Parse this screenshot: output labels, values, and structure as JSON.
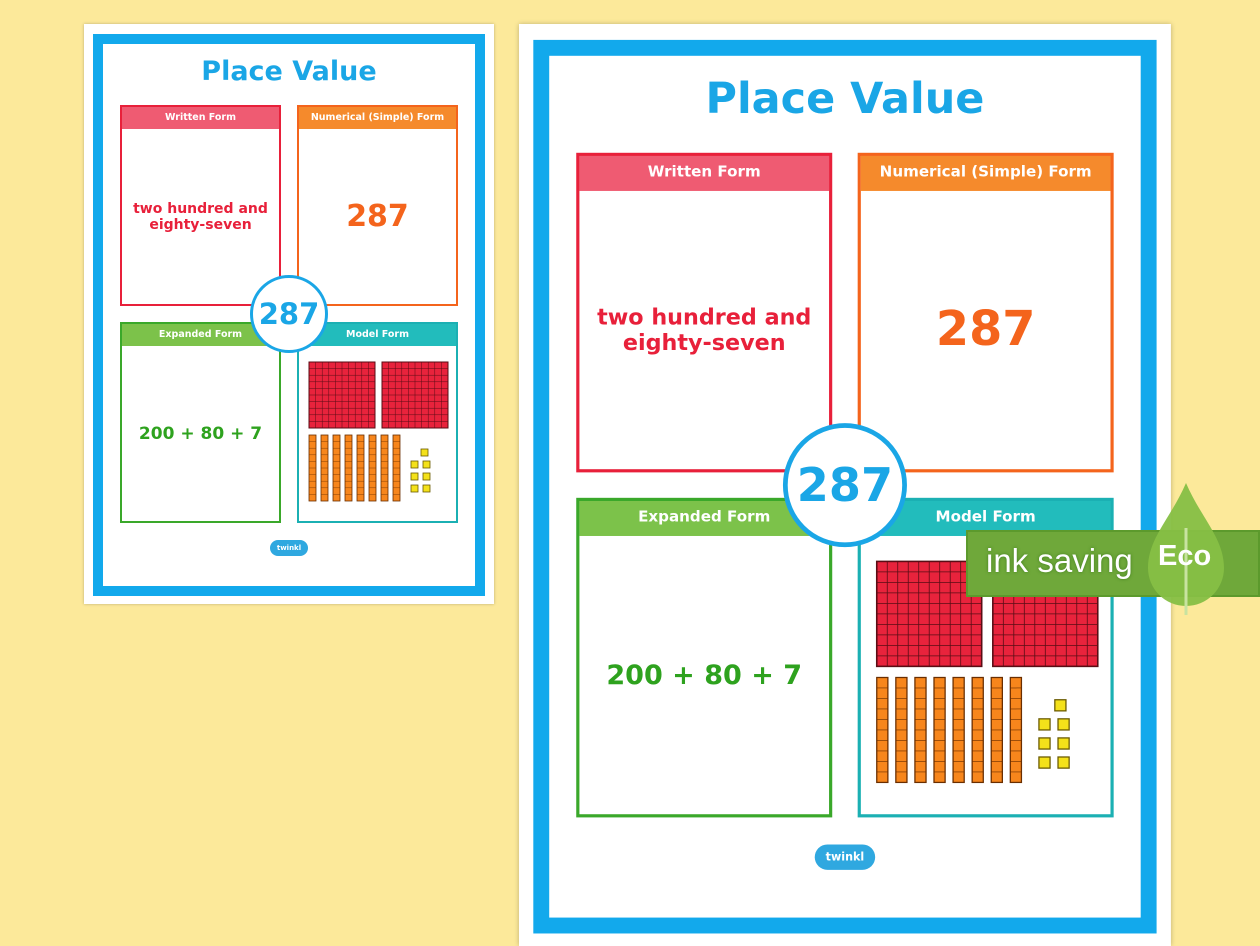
{
  "poster": {
    "title": "Place Value",
    "number": "287",
    "written": {
      "label": "Written Form",
      "value": "two hundred and eighty-seven"
    },
    "numerical": {
      "label": "Numerical (Simple) Form",
      "value": "287"
    },
    "expanded": {
      "label": "Expanded Form",
      "value": "200 + 80 + 7"
    },
    "model": {
      "label": "Model Form",
      "hundreds": 2,
      "tens": 8,
      "ones": 7
    },
    "logo": "twinkl"
  },
  "colors": {
    "background": "#fce99a",
    "border": "#12a9ec",
    "written": "#e8203a",
    "numerical": "#f4641c",
    "expanded": "#3aa82a",
    "model": "#1bb0b3"
  },
  "badge": {
    "text": "ink saving",
    "label": "Eco",
    "icon": "leaf-drop-icon"
  }
}
